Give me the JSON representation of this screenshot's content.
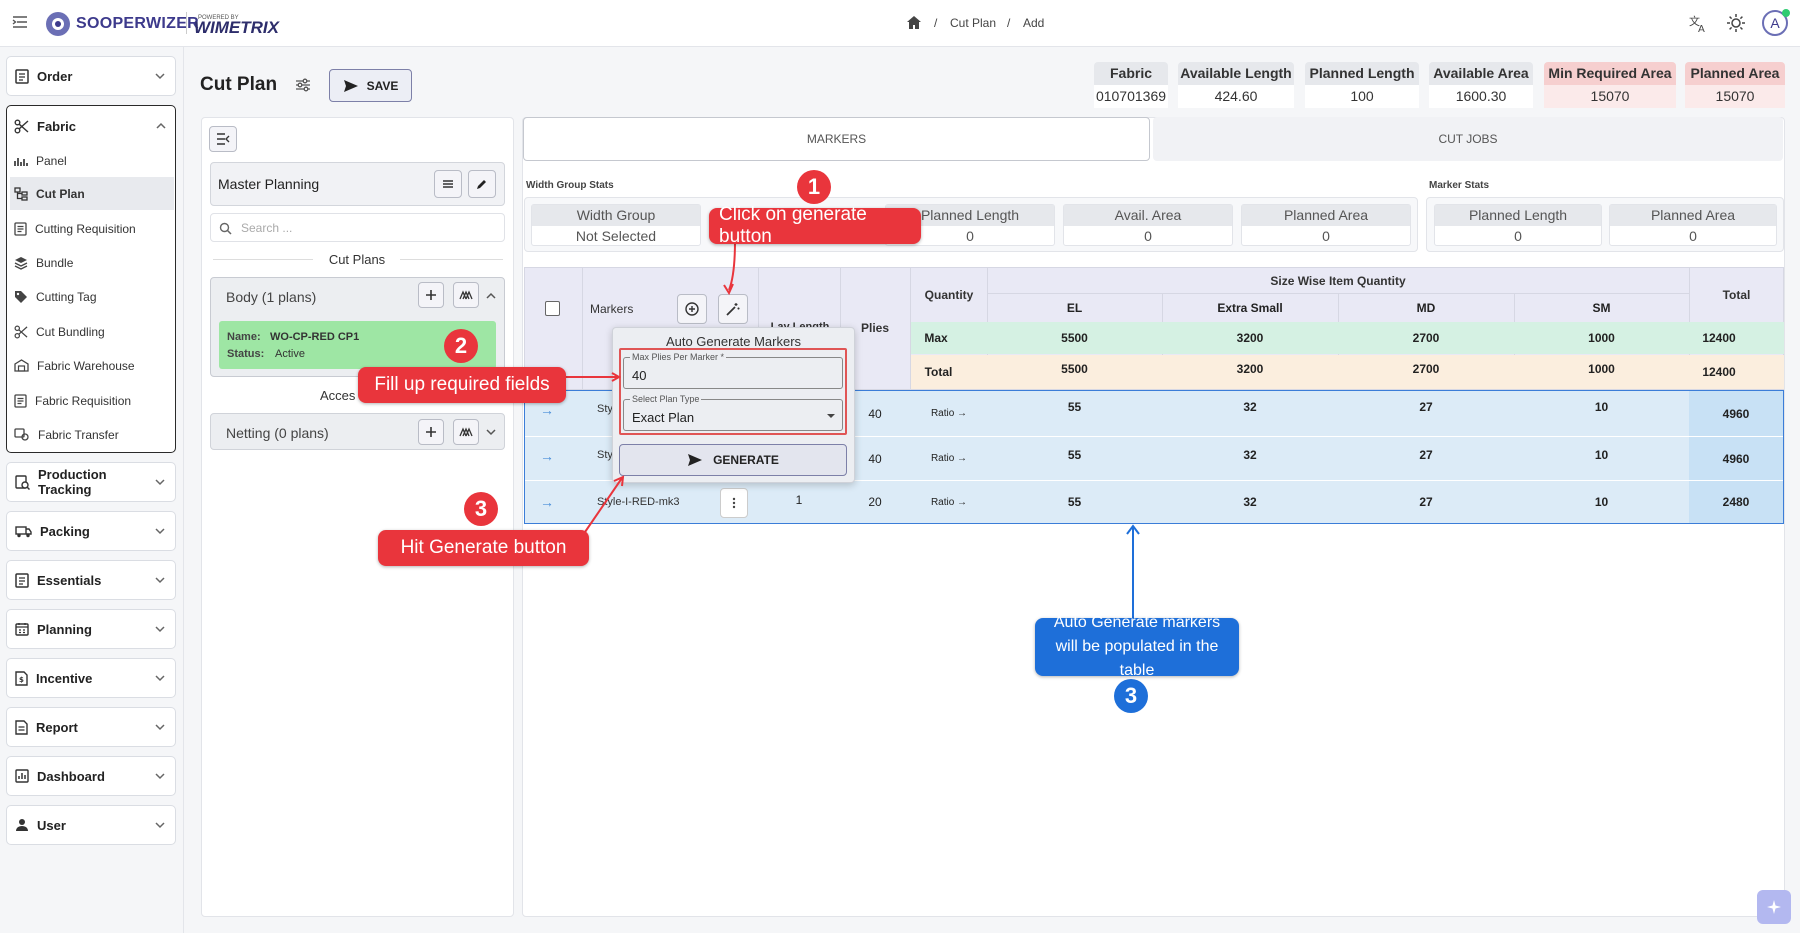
{
  "header": {
    "brand": "SOOPERWIZER",
    "powered_by": "POWERED BY",
    "powered_brand": "WIMETRIX",
    "breadcrumb": [
      "Cut Plan",
      "Add"
    ],
    "avatar": "A"
  },
  "sidebar": {
    "groups": [
      {
        "label": "Order"
      },
      {
        "label": "Fabric"
      },
      {
        "label": "Production Tracking"
      },
      {
        "label": "Packing"
      },
      {
        "label": "Essentials"
      },
      {
        "label": "Planning"
      },
      {
        "label": "Incentive"
      },
      {
        "label": "Report"
      },
      {
        "label": "Dashboard"
      },
      {
        "label": "User"
      }
    ],
    "fabric_items": [
      {
        "label": "Panel"
      },
      {
        "label": "Cut Plan"
      },
      {
        "label": "Cutting Requisition"
      },
      {
        "label": "Bundle"
      },
      {
        "label": "Cutting Tag"
      },
      {
        "label": "Cut Bundling"
      },
      {
        "label": "Fabric Warehouse"
      },
      {
        "label": "Fabric Requisition"
      },
      {
        "label": "Fabric Transfer"
      }
    ]
  },
  "page": {
    "title": "Cut Plan",
    "save_label": "SAVE"
  },
  "stats": [
    {
      "label": "Fabric",
      "value": "010701369"
    },
    {
      "label": "Available Length",
      "value": "424.60"
    },
    {
      "label": "Planned Length",
      "value": "100"
    },
    {
      "label": "Available Area",
      "value": "1600.30"
    },
    {
      "label": "Min Required Area",
      "value": "15070"
    },
    {
      "label": "Planned Area",
      "value": "15070"
    }
  ],
  "left_panel": {
    "master_planning": "Master Planning",
    "search_placeholder": "Search ...",
    "cut_plans_title": "Cut Plans",
    "body_group": "Body (1 plans)",
    "plan_name_label": "Name:",
    "plan_name": "WO-CP-RED CP1",
    "plan_status_label": "Status:",
    "plan_status": "Active",
    "accessories_title": "Acces",
    "netting_group": "Netting (0 plans)"
  },
  "tabs": [
    {
      "label": "MARKERS"
    },
    {
      "label": "CUT JOBS"
    }
  ],
  "width_group_stats": {
    "title": "Width Group Stats",
    "items": [
      {
        "label": "Width Group",
        "value": "Not Selected"
      },
      {
        "label": "Planned Length",
        "value": "0"
      },
      {
        "label": "Avail. Area",
        "value": "0"
      },
      {
        "label": "Planned Area",
        "value": "0"
      }
    ]
  },
  "marker_stats": {
    "title": "Marker Stats",
    "items": [
      {
        "label": "Planned Length",
        "value": "0"
      },
      {
        "label": "Planned Area",
        "value": "0"
      }
    ]
  },
  "table": {
    "markers_label": "Markers",
    "length_header": "Lay Length",
    "plies_header": "Plies",
    "quantity_header": "Quantity",
    "size_header": "Size Wise Item Quantity",
    "total_header": "Total",
    "sizes": [
      "EL",
      "Extra Small",
      "MD",
      "SM"
    ],
    "summary": [
      {
        "label": "Max",
        "values": [
          "5500",
          "3200",
          "2700",
          "1000"
        ],
        "total": "12400"
      },
      {
        "label": "Total",
        "values": [
          "5500",
          "3200",
          "2700",
          "1000"
        ],
        "total": "12400"
      }
    ],
    "rows": [
      {
        "name": "Sty",
        "length": "",
        "plies": "40",
        "ratio": "Ratio →",
        "values": [
          "55",
          "32",
          "27",
          "10"
        ],
        "total": "4960"
      },
      {
        "name": "Sty",
        "length": "",
        "plies": "40",
        "ratio": "Ratio →",
        "values": [
          "55",
          "32",
          "27",
          "10"
        ],
        "total": "4960"
      },
      {
        "name": "Style-I-RED-mk3",
        "length": "1",
        "plies": "20",
        "ratio": "Ratio →",
        "values": [
          "55",
          "32",
          "27",
          "10"
        ],
        "total": "2480"
      }
    ]
  },
  "popup": {
    "title": "Auto Generate Markers",
    "max_plies_label": "Max Plies Per Marker *",
    "max_plies_value": "40",
    "plan_type_label": "Select Plan Type",
    "plan_type_value": "Exact Plan",
    "generate_label": "GENERATE"
  },
  "annotations": {
    "step1": "Click on generate button",
    "step2": "Fill up required fields",
    "step3a": "Hit Generate button",
    "step3b": "Auto Generate markers will be populated in the table",
    "n1": "1",
    "n2": "2",
    "n3": "3"
  },
  "colors": {
    "accent": "#3d3a8c",
    "callout": "#e9353c",
    "info": "#1e6fd9"
  }
}
